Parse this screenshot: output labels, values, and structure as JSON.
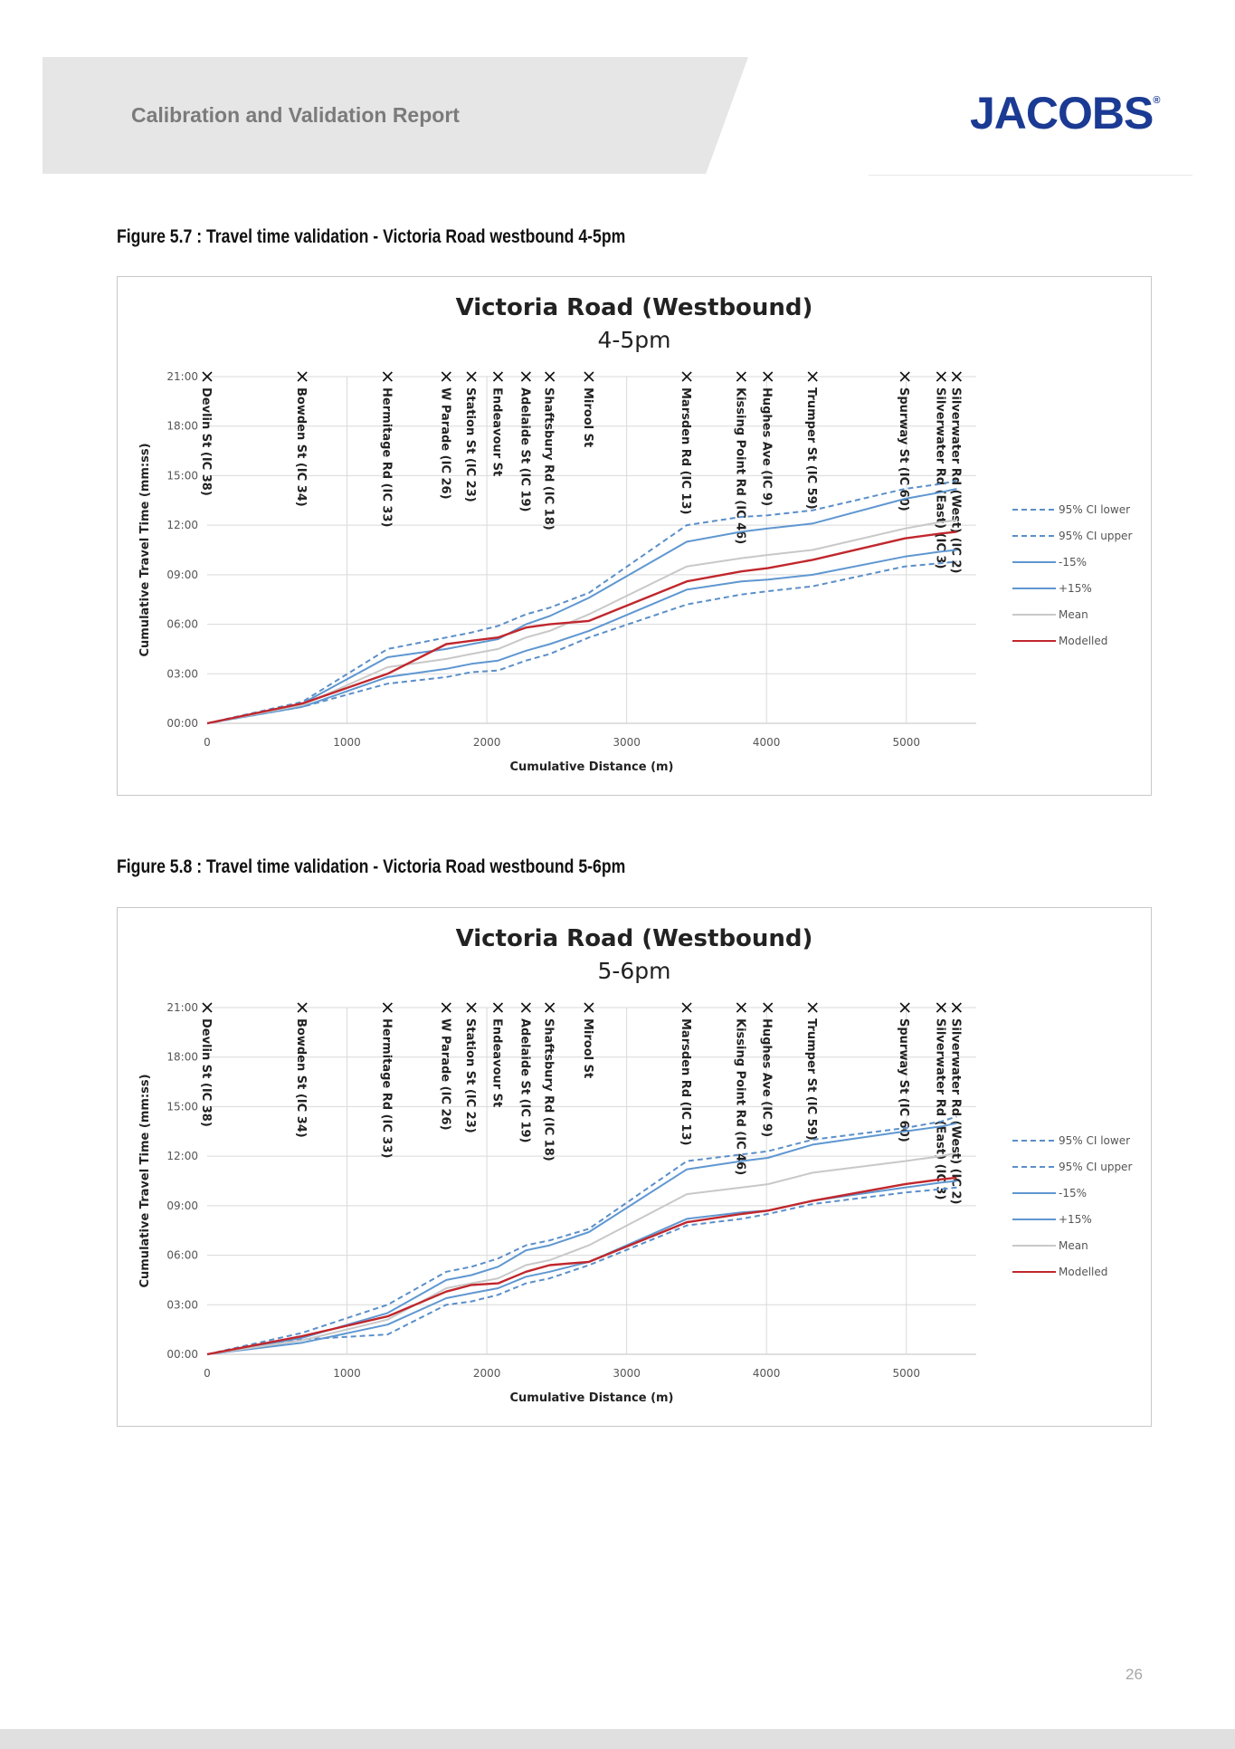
{
  "header": {
    "title": "Calibration and Validation Report",
    "logo_text": "JACOBS",
    "logo_mark": "®"
  },
  "figures": [
    {
      "caption": "Figure 5.7 : Travel time validation - Victoria Road westbound 4-5pm"
    },
    {
      "caption": "Figure 5.8 : Travel time validation - Victoria Road westbound 5-6pm"
    }
  ],
  "page_number": "26",
  "colors": {
    "accent_blue": "#1b3a93",
    "ci_blue": "#5b8fc9",
    "band_blue": "#5f97d1",
    "mean_grey": "#c8c8c8",
    "modelled_red": "#c0272d"
  },
  "chart_data": [
    {
      "type": "line",
      "title": "Victoria Road (Westbound)",
      "subtitle": "4-5pm",
      "xlabel": "Cumulative Distance (m)",
      "ylabel": "Cumulative Travel Time (mm:ss)",
      "xlim": [
        0,
        5500
      ],
      "ylim": [
        0,
        21
      ],
      "x_ticks": [
        0,
        1000,
        2000,
        3000,
        4000,
        5000
      ],
      "y_ticks": [
        "00:00",
        "03:00",
        "06:00",
        "09:00",
        "12:00",
        "15:00",
        "18:00",
        "21:00"
      ],
      "grid": "vertical",
      "legend": "right",
      "markers": [
        {
          "x": 0,
          "label": "Devlin St (IC 38)"
        },
        {
          "x": 680,
          "label": "Bowden St (IC 34)"
        },
        {
          "x": 1290,
          "label": "Hermitage Rd (IC 33)"
        },
        {
          "x": 1710,
          "label": "W Parade (IC 26)"
        },
        {
          "x": 1890,
          "label": "Station St (IC 23)"
        },
        {
          "x": 2080,
          "label": "Endeavour St"
        },
        {
          "x": 2280,
          "label": "Adelaide St (IC 19)"
        },
        {
          "x": 2450,
          "label": "Shaftsbury Rd (IC 18)"
        },
        {
          "x": 2730,
          "label": "Mirool St"
        },
        {
          "x": 3430,
          "label": "Marsden Rd (IC 13)"
        },
        {
          "x": 3820,
          "label": "Kissing Point Rd (IC 46)"
        },
        {
          "x": 4010,
          "label": "Hughes Ave (IC 9)"
        },
        {
          "x": 4330,
          "label": "Trumper St (IC 59)"
        },
        {
          "x": 4990,
          "label": "Spurway St (IC 60)"
        },
        {
          "x": 5250,
          "label": "Silverwater Rd (East) (IC 3)"
        },
        {
          "x": 5360,
          "label": "Silverwater Rd (West) (IC 2)"
        }
      ],
      "x": [
        0,
        680,
        1290,
        1710,
        1890,
        2080,
        2280,
        2450,
        2730,
        3430,
        3820,
        4010,
        4330,
        4990,
        5250,
        5360
      ],
      "series": [
        {
          "name": "95% CI lower",
          "style": "dashed",
          "color": "#5b8fc9",
          "values": [
            0,
            1.0,
            2.4,
            2.8,
            3.1,
            3.2,
            3.8,
            4.2,
            5.2,
            7.2,
            7.8,
            8.0,
            8.3,
            9.5,
            9.7,
            9.8
          ]
        },
        {
          "name": "95% CI upper",
          "style": "dashed",
          "color": "#5b8fc9",
          "values": [
            0,
            1.3,
            4.5,
            5.2,
            5.5,
            5.9,
            6.6,
            7.0,
            7.9,
            12.0,
            12.5,
            12.6,
            12.9,
            14.2,
            14.5,
            14.7
          ]
        },
        {
          "name": "-15%",
          "style": "solid",
          "color": "#5f97d1",
          "values": [
            0,
            1.0,
            2.8,
            3.3,
            3.6,
            3.8,
            4.4,
            4.8,
            5.6,
            8.1,
            8.6,
            8.7,
            9.0,
            10.1,
            10.4,
            10.5
          ]
        },
        {
          "name": "+15%",
          "style": "solid",
          "color": "#5f97d1",
          "values": [
            0,
            1.2,
            4.0,
            4.5,
            4.8,
            5.1,
            6.0,
            6.5,
            7.6,
            11.0,
            11.6,
            11.8,
            12.1,
            13.6,
            14.0,
            14.2
          ]
        },
        {
          "name": "Mean",
          "style": "solid",
          "color": "#c8c8c8",
          "values": [
            0,
            1.1,
            3.4,
            3.9,
            4.2,
            4.5,
            5.2,
            5.6,
            6.6,
            9.5,
            10.0,
            10.2,
            10.5,
            11.8,
            12.2,
            12.3
          ]
        },
        {
          "name": "Modelled",
          "style": "solid",
          "color": "#c0272d",
          "values": [
            0,
            1.2,
            3.0,
            4.8,
            5.0,
            5.2,
            5.8,
            6.0,
            6.2,
            8.6,
            9.2,
            9.4,
            9.9,
            11.2,
            11.5,
            11.6
          ]
        }
      ]
    },
    {
      "type": "line",
      "title": "Victoria Road (Westbound)",
      "subtitle": "5-6pm",
      "xlabel": "Cumulative Distance (m)",
      "ylabel": "Cumulative Travel Time (mm:ss)",
      "xlim": [
        0,
        5500
      ],
      "ylim": [
        0,
        21
      ],
      "x_ticks": [
        0,
        1000,
        2000,
        3000,
        4000,
        5000
      ],
      "y_ticks": [
        "00:00",
        "03:00",
        "06:00",
        "09:00",
        "12:00",
        "15:00",
        "18:00",
        "21:00"
      ],
      "grid": "vertical",
      "legend": "right",
      "markers": [
        {
          "x": 0,
          "label": "Devlin St (IC 38)"
        },
        {
          "x": 680,
          "label": "Bowden St (IC 34)"
        },
        {
          "x": 1290,
          "label": "Hermitage Rd (IC 33)"
        },
        {
          "x": 1710,
          "label": "W Parade (IC 26)"
        },
        {
          "x": 1890,
          "label": "Station St (IC 23)"
        },
        {
          "x": 2080,
          "label": "Endeavour St"
        },
        {
          "x": 2280,
          "label": "Adelaide St (IC 19)"
        },
        {
          "x": 2450,
          "label": "Shaftsbury Rd (IC 18)"
        },
        {
          "x": 2730,
          "label": "Mirool St"
        },
        {
          "x": 3430,
          "label": "Marsden Rd (IC 13)"
        },
        {
          "x": 3820,
          "label": "Kissing Point Rd (IC 46)"
        },
        {
          "x": 4010,
          "label": "Hughes Ave (IC 9)"
        },
        {
          "x": 4330,
          "label": "Trumper St (IC 59)"
        },
        {
          "x": 4990,
          "label": "Spurway St (IC 60)"
        },
        {
          "x": 5250,
          "label": "Silverwater Rd (East) (IC 3)"
        },
        {
          "x": 5360,
          "label": "Silverwater Rd (West) (IC 2)"
        }
      ],
      "x": [
        0,
        680,
        1290,
        1710,
        1890,
        2080,
        2280,
        2450,
        2730,
        3430,
        3820,
        4010,
        4330,
        4990,
        5250,
        5360
      ],
      "series": [
        {
          "name": "95% CI lower",
          "style": "dashed",
          "color": "#5b8fc9",
          "values": [
            0,
            0.9,
            1.2,
            3.0,
            3.2,
            3.6,
            4.3,
            4.6,
            5.4,
            7.8,
            8.2,
            8.5,
            9.1,
            9.8,
            10.0,
            10.1
          ]
        },
        {
          "name": "95% CI upper",
          "style": "dashed",
          "color": "#5b8fc9",
          "values": [
            0,
            1.3,
            3.0,
            5.0,
            5.3,
            5.8,
            6.6,
            6.9,
            7.6,
            11.7,
            12.1,
            12.3,
            13.0,
            13.7,
            14.1,
            14.4
          ]
        },
        {
          "name": "-15%",
          "style": "solid",
          "color": "#5f97d1",
          "values": [
            0,
            0.7,
            1.8,
            3.4,
            3.7,
            4.0,
            4.7,
            5.0,
            5.6,
            8.2,
            8.6,
            8.7,
            9.3,
            10.1,
            10.4,
            10.5
          ]
        },
        {
          "name": "+15%",
          "style": "solid",
          "color": "#5f97d1",
          "values": [
            0,
            1.0,
            2.5,
            4.5,
            4.8,
            5.3,
            6.3,
            6.6,
            7.4,
            11.2,
            11.7,
            11.9,
            12.7,
            13.5,
            13.8,
            14.0
          ]
        },
        {
          "name": "Mean",
          "style": "solid",
          "color": "#c8c8c8",
          "values": [
            0,
            0.85,
            2.1,
            4.0,
            4.3,
            4.6,
            5.4,
            5.7,
            6.6,
            9.7,
            10.1,
            10.3,
            11.0,
            11.7,
            12.0,
            12.2
          ]
        },
        {
          "name": "Modelled",
          "style": "solid",
          "color": "#c0272d",
          "values": [
            0,
            1.1,
            2.3,
            3.8,
            4.2,
            4.3,
            5.0,
            5.4,
            5.6,
            8.0,
            8.5,
            8.7,
            9.3,
            10.3,
            10.6,
            10.7
          ]
        }
      ]
    }
  ]
}
